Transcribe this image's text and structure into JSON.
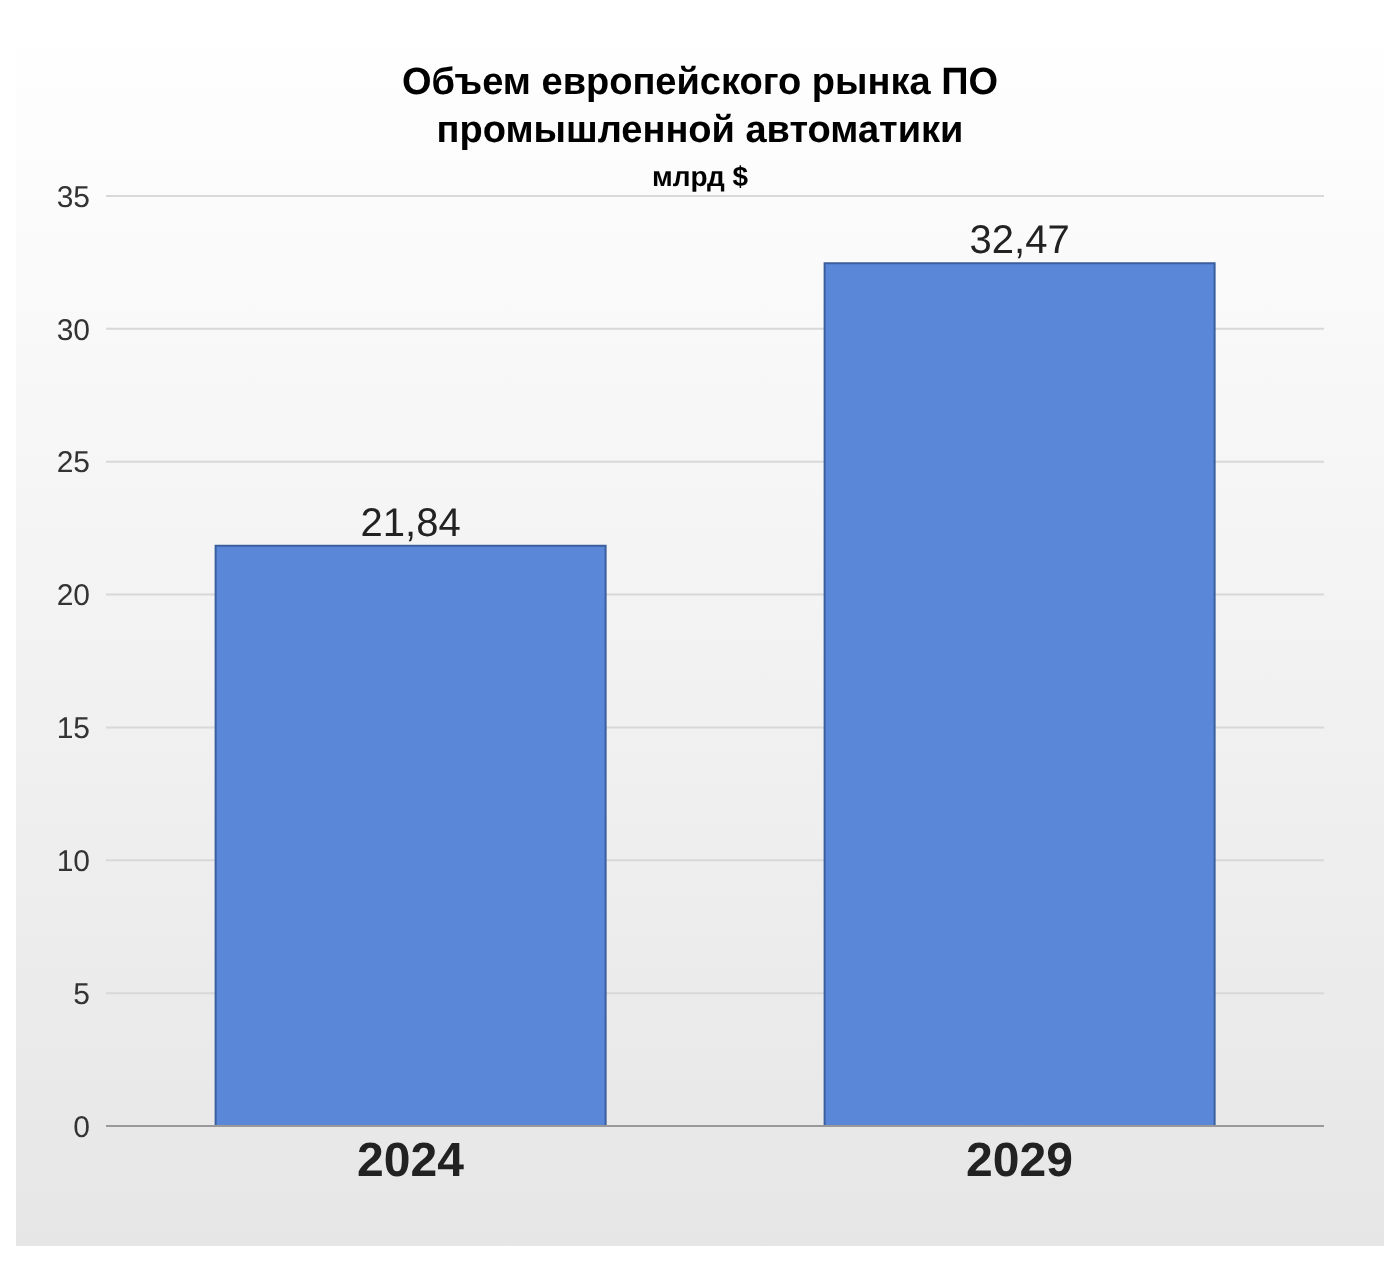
{
  "chart_data": {
    "type": "bar",
    "title": "Объем европейского рынка ПО промышленной автоматики",
    "subtitle": "млрд $",
    "categories": [
      "2024",
      "2029"
    ],
    "values": [
      21.84,
      32.47
    ],
    "value_labels": [
      "21,84",
      "32,47"
    ],
    "color": "#5b87d8",
    "ylim": [
      0,
      35
    ],
    "yticks": [
      0,
      5,
      10,
      15,
      20,
      25,
      30,
      35
    ],
    "grid": "y"
  }
}
